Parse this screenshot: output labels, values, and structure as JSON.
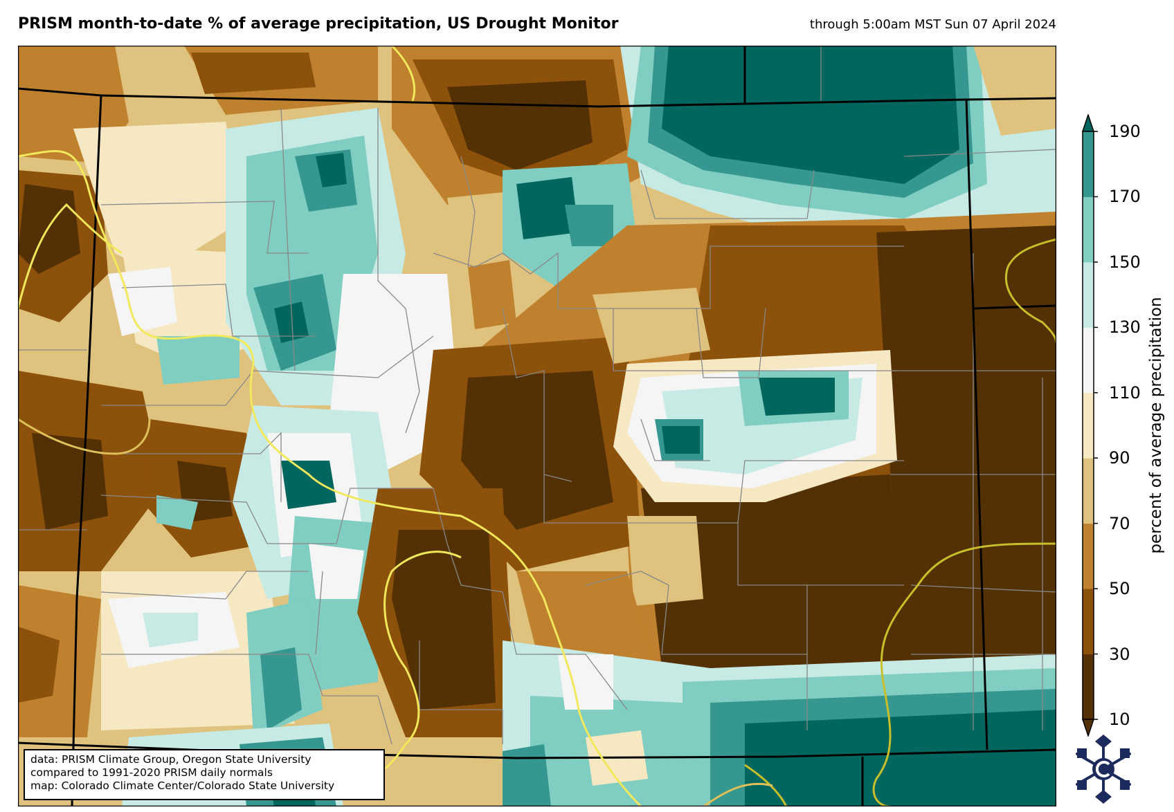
{
  "header": {
    "title": "PRISM month-to-date % of average precipitation, US Drought Monitor",
    "valid_time": "through 5:00am MST Sun 07 April 2024"
  },
  "colorbar": {
    "label": "percent of average precipitation",
    "ticks": [
      "190",
      "170",
      "150",
      "130",
      "110",
      "90",
      "70",
      "50",
      "30",
      "10"
    ],
    "bands": [
      {
        "range": "<10",
        "color": "#543005"
      },
      {
        "range": "10-30",
        "color": "#543005"
      },
      {
        "range": "30-50",
        "color": "#8c510a"
      },
      {
        "range": "50-70",
        "color": "#bf812d"
      },
      {
        "range": "70-90",
        "color": "#dfc27d"
      },
      {
        "range": "90-110",
        "color": "#f6e8c3"
      },
      {
        "range": "110-130",
        "color": "#f5f5f5"
      },
      {
        "range": "130-150",
        "color": "#c7eae5"
      },
      {
        "range": "150-170",
        "color": "#80cdc1"
      },
      {
        "range": "170-190",
        "color": "#35978f"
      },
      {
        "range": ">190",
        "color": "#01665e"
      }
    ]
  },
  "map": {
    "region": "Colorado",
    "colors": {
      "very_dry": "#543005",
      "dry": "#8c510a",
      "somewhat_dry": "#bf812d",
      "below_normal": "#dfc27d",
      "near_normal": "#f6e8c3",
      "normal": "#f5f5f5",
      "above_normal": "#c7eae5",
      "wet": "#80cdc1",
      "very_wet": "#35978f",
      "extremely_wet": "#01665e",
      "drought_contour_d0": "#f1e85c",
      "drought_contour_d1": "#e0c05a",
      "drought_contour_d2": "#c8bf2a",
      "county_lines": "#888888",
      "state_lines": "#000000"
    }
  },
  "credit": {
    "line1": "data: PRISM Climate Group, Oregon State University",
    "line2": "compared to 1991-2020 PRISM daily normals",
    "line3": "map: Colorado Climate Center/Colorado State University"
  },
  "logo": {
    "icon": "snowflake-logo-icon",
    "color": "#1d2b5c"
  }
}
